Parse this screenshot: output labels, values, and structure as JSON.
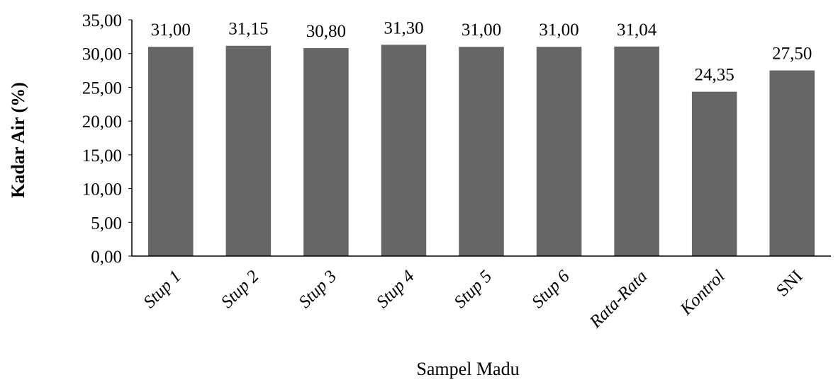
{
  "chart_data": {
    "type": "bar",
    "title": "",
    "xlabel": "Sampel Madu",
    "ylabel": "Kadar Air (%)",
    "categories": [
      "Stup 1",
      "Stup 2",
      "Stup 3",
      "Stup 4",
      "Stup 5",
      "Stup 6",
      "Rata-Rata",
      "Kontrol",
      "SNI"
    ],
    "category_italic": [
      true,
      true,
      true,
      true,
      true,
      true,
      true,
      true,
      false
    ],
    "values": [
      31.0,
      31.15,
      30.8,
      31.3,
      31.0,
      31.0,
      31.04,
      24.35,
      27.5
    ],
    "data_labels": [
      "31,00",
      "31,15",
      "30,80",
      "31,30",
      "31,00",
      "31,00",
      "31,04",
      "24,35",
      "27,50"
    ],
    "ylim": [
      0,
      35
    ],
    "yticks": [
      0,
      5,
      10,
      15,
      20,
      25,
      30,
      35
    ],
    "ytick_labels": [
      "0,00",
      "5,00",
      "10,00",
      "15,00",
      "20,00",
      "25,00",
      "30,00",
      "35,00"
    ],
    "bar_color": "#666666",
    "grid": false,
    "legend": "none"
  }
}
